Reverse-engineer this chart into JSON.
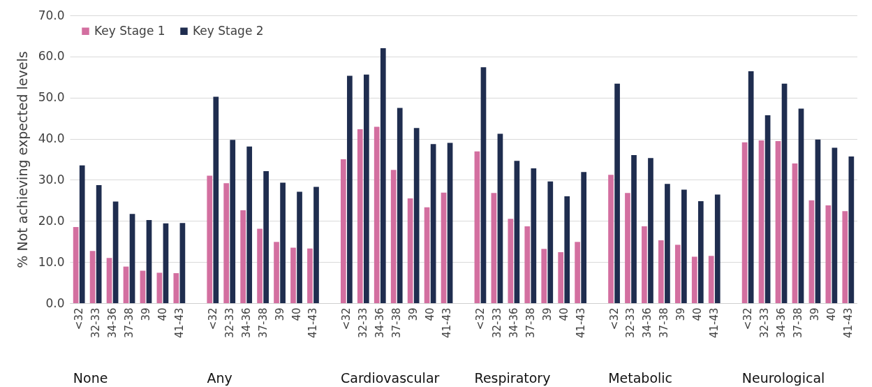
{
  "chart_data": {
    "type": "bar",
    "ylabel": "% Not achieving expected levels",
    "categories": [
      "<32",
      "32-33",
      "34-36",
      "37-38",
      "39",
      "40",
      "41-43",
      null,
      "<32",
      "32-33",
      "34-36",
      "37-38",
      "39",
      "40",
      "41-43",
      null,
      "<32",
      "32-33",
      "34-36",
      "37-38",
      "39",
      "40",
      "41-43",
      null,
      "<32",
      "32-33",
      "34-36",
      "37-38",
      "39",
      "40",
      "41-43",
      null,
      "<32",
      "32-33",
      "34-36",
      "37-38",
      "39",
      "40",
      "41-43",
      null,
      "<32",
      "32-33",
      "34-36",
      "37-38",
      "39",
      "40",
      "41-43"
    ],
    "series": [
      {
        "name": "Key Stage 1",
        "color": "#d36fa0",
        "values": [
          18.5,
          12.7,
          11.0,
          8.9,
          7.9,
          7.4,
          7.3,
          null,
          31.0,
          29.2,
          22.6,
          18.1,
          14.9,
          13.5,
          13.3,
          null,
          35.0,
          42.3,
          42.9,
          32.4,
          25.5,
          23.3,
          26.9,
          null,
          36.9,
          26.8,
          20.5,
          18.7,
          13.2,
          12.4,
          14.9,
          null,
          31.2,
          26.8,
          18.7,
          15.3,
          14.2,
          11.3,
          11.5,
          null,
          39.1,
          39.6,
          39.4,
          34.0,
          25.0,
          23.8,
          22.4
        ]
      },
      {
        "name": "Key Stage 2",
        "color": "#1f2d4f",
        "values": [
          33.5,
          28.7,
          24.7,
          21.7,
          20.2,
          19.4,
          19.5,
          null,
          50.2,
          39.7,
          38.1,
          32.1,
          29.3,
          27.1,
          28.3,
          null,
          55.3,
          55.6,
          62.0,
          47.5,
          42.6,
          38.7,
          39.0,
          null,
          57.4,
          41.2,
          34.6,
          32.8,
          29.6,
          26.0,
          31.9,
          null,
          53.4,
          36.0,
          35.3,
          29.0,
          27.6,
          24.8,
          26.4,
          null,
          56.4,
          45.7,
          53.4,
          47.3,
          39.8,
          37.8,
          35.7
        ]
      }
    ],
    "annotations": [
      "None",
      "Any",
      "Cardiovascular",
      "Respiratory",
      "Metabolic",
      "Neurological"
    ],
    "ylim": [
      0,
      70
    ],
    "yticks": [
      {
        "value": 0,
        "label": "0.0"
      },
      {
        "value": 10,
        "label": "10.0"
      },
      {
        "value": 20,
        "label": "20.0"
      },
      {
        "value": 30,
        "label": "30.0"
      },
      {
        "value": 40,
        "label": "40.0"
      },
      {
        "value": 50,
        "label": "50.0"
      },
      {
        "value": 60,
        "label": "60.0"
      },
      {
        "value": 70,
        "label": "70.0"
      }
    ],
    "grid": "y",
    "legend": "top left"
  }
}
